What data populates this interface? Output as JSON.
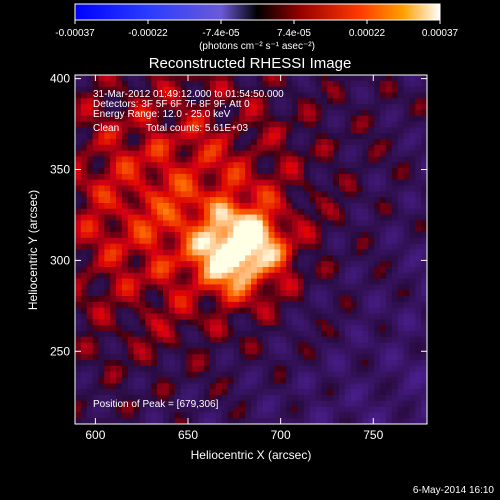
{
  "chart_data": {
    "type": "heatmap",
    "title": "Reconstructed RHESSI Image",
    "xlabel": "Heliocentric X (arcsec)",
    "ylabel": "Heliocentric Y (arcsec)",
    "xlim": [
      589,
      779
    ],
    "ylim": [
      210,
      402
    ],
    "x_ticks": [
      600,
      650,
      700,
      750
    ],
    "y_ticks": [
      250,
      300,
      350,
      400
    ],
    "annotations": {
      "time_range": "31-Mar-2012 01:49:12.000 to 01:54:50.000",
      "detectors": "Detectors: 3F 5F 6F 7F 8F 9F, Att 0",
      "energy": "Energy Range: 12.0 - 25.0 keV",
      "method": "Clean",
      "counts": "Total counts: 5.61E+03",
      "peak": "Position of Peak = [679,306]"
    },
    "peak_position": [
      679,
      306
    ],
    "colorbar": {
      "min": -0.00037,
      "max": 0.00037,
      "tick_labels": [
        "-0.00037",
        "-0.00022",
        "-7.4e-05",
        "7.4e-05",
        "0.00022",
        "0.00037"
      ],
      "unit_label": "(photons cm⁻² s⁻¹ asec⁻²)"
    },
    "timestamp": "6-May-2014 16:10"
  }
}
